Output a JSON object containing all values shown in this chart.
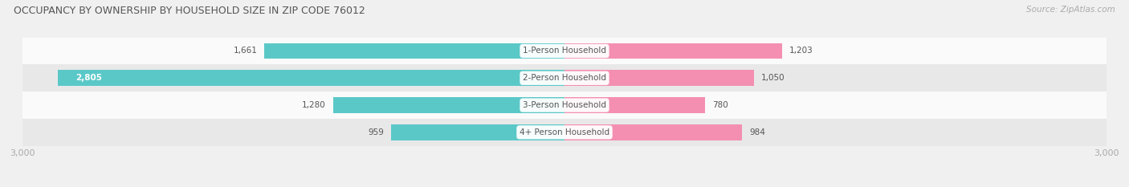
{
  "title": "OCCUPANCY BY OWNERSHIP BY HOUSEHOLD SIZE IN ZIP CODE 76012",
  "source": "Source: ZipAtlas.com",
  "categories": [
    "1-Person Household",
    "2-Person Household",
    "3-Person Household",
    "4+ Person Household"
  ],
  "owner_values": [
    1661,
    2805,
    1280,
    959
  ],
  "renter_values": [
    1203,
    1050,
    780,
    984
  ],
  "max_val": 3000,
  "owner_color": "#5bc8c8",
  "renter_color": "#f48fb1",
  "bg_color": "#f0f0f0",
  "row_bg_light": "#fafafa",
  "row_bg_dark": "#e8e8e8",
  "title_color": "#555555",
  "label_color": "#555555",
  "axis_label_color": "#aaaaaa",
  "bar_height": 0.58
}
